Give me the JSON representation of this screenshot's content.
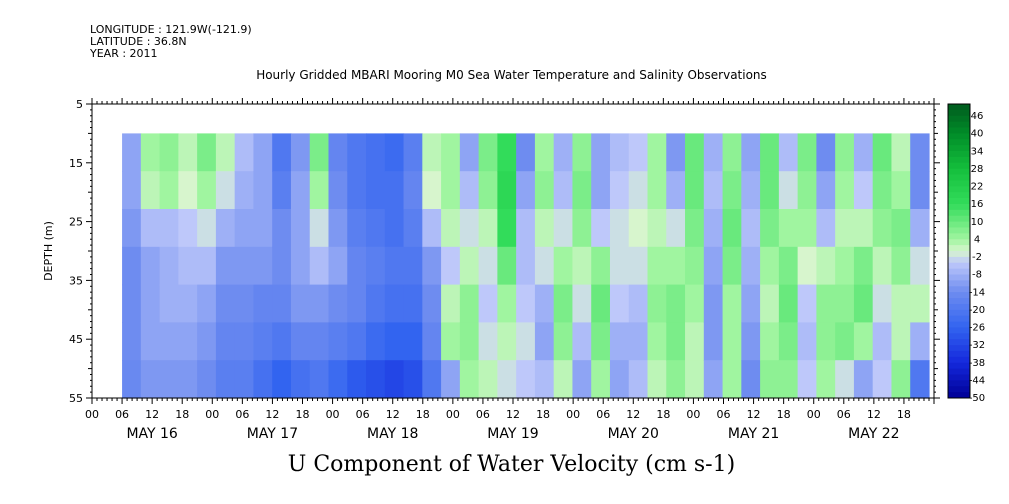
{
  "header": {
    "longitude": "LONGITUDE : 121.9W(-121.9)",
    "latitude": "LATITUDE : 36.8N",
    "year": "YEAR : 2011"
  },
  "chart_data": {
    "type": "heatmap",
    "title": "Hourly Gridded MBARI Mooring M0 Sea Water Temperature and Salinity Observations",
    "bottom_title": "U Component of Water Velocity (cm s-1)",
    "ylabel": "DEPTH (m)",
    "yticks": [
      5,
      15,
      25,
      35,
      45,
      55
    ],
    "ylim": [
      5,
      55
    ],
    "y_inverted": true,
    "data_depth_range": [
      10,
      55
    ],
    "x_hour_ticks": [
      "00",
      "06",
      "12",
      "18",
      "00",
      "06",
      "12",
      "18",
      "00",
      "06",
      "12",
      "18",
      "00",
      "06",
      "12",
      "18",
      "00",
      "06",
      "12",
      "18",
      "00",
      "06",
      "12",
      "18",
      "00",
      "06",
      "12",
      "18"
    ],
    "x_day_labels": [
      "MAY 16",
      "MAY 17",
      "MAY 18",
      "MAY 19",
      "MAY 20",
      "MAY 21",
      "MAY 22"
    ],
    "x_range_hours": [
      0,
      168
    ],
    "data_time_range_hours": [
      6,
      167
    ],
    "colorbar_labels": [
      "46",
      "40",
      "34",
      "28",
      "22",
      "16",
      "10",
      "4",
      "-2",
      "-8",
      "-14",
      "-20",
      "-26",
      "-32",
      "-38",
      "-44",
      "-50"
    ],
    "colorbar_range": [
      -50,
      50
    ],
    "column_profiles": [
      [
        -10,
        -10,
        -12,
        -14,
        -14,
        -14,
        -15
      ],
      [
        4,
        2,
        -6,
        -10,
        -10,
        -10,
        -12
      ],
      [
        6,
        4,
        -6,
        -8,
        -8,
        -10,
        -12
      ],
      [
        2,
        0,
        -4,
        -6,
        -8,
        -10,
        -12
      ],
      [
        8,
        4,
        -2,
        -6,
        -10,
        -12,
        -14
      ],
      [
        2,
        -2,
        -8,
        -12,
        -14,
        -16,
        -18
      ],
      [
        -6,
        -8,
        -10,
        -12,
        -14,
        -16,
        -18
      ],
      [
        -10,
        -10,
        -10,
        -12,
        -16,
        -18,
        -22
      ],
      [
        -20,
        -18,
        -14,
        -14,
        -16,
        -20,
        -26
      ],
      [
        -12,
        -10,
        -10,
        -10,
        -12,
        -16,
        -22
      ],
      [
        8,
        4,
        -2,
        -6,
        -12,
        -16,
        -20
      ],
      [
        -16,
        -14,
        -12,
        -10,
        -14,
        -18,
        -24
      ],
      [
        -20,
        -20,
        -18,
        -16,
        -16,
        -20,
        -28
      ],
      [
        -22,
        -22,
        -20,
        -18,
        -20,
        -24,
        -30
      ],
      [
        -24,
        -22,
        -22,
        -20,
        -22,
        -26,
        -32
      ],
      [
        -18,
        -16,
        -18,
        -20,
        -22,
        -26,
        -30
      ],
      [
        2,
        0,
        -6,
        -12,
        -14,
        -16,
        -20
      ],
      [
        4,
        4,
        2,
        -4,
        2,
        4,
        -10
      ],
      [
        -10,
        -6,
        -2,
        2,
        6,
        6,
        4
      ],
      [
        8,
        6,
        2,
        -2,
        -4,
        -2,
        2
      ],
      [
        16,
        18,
        16,
        10,
        4,
        2,
        -2
      ],
      [
        -14,
        -10,
        -6,
        -6,
        -4,
        -2,
        -4
      ],
      [
        4,
        6,
        2,
        -2,
        -8,
        -10,
        -6
      ],
      [
        -8,
        -6,
        -2,
        4,
        8,
        6,
        2
      ],
      [
        6,
        8,
        6,
        2,
        -2,
        -6,
        -10
      ],
      [
        -10,
        -10,
        -4,
        6,
        10,
        8,
        4
      ],
      [
        -6,
        -4,
        -2,
        -2,
        -4,
        -8,
        -10
      ],
      [
        -4,
        -2,
        0,
        -2,
        -6,
        -8,
        -6
      ],
      [
        4,
        4,
        2,
        4,
        6,
        4,
        2
      ],
      [
        -12,
        -8,
        -2,
        4,
        8,
        8,
        6
      ],
      [
        10,
        10,
        8,
        6,
        4,
        2,
        2
      ],
      [
        -8,
        -6,
        -8,
        -10,
        -12,
        -12,
        -10
      ],
      [
        6,
        8,
        10,
        8,
        4,
        4,
        4
      ],
      [
        -10,
        -8,
        -6,
        -8,
        -10,
        -12,
        -14
      ],
      [
        10,
        10,
        8,
        4,
        2,
        4,
        6
      ],
      [
        -6,
        -2,
        4,
        8,
        10,
        8,
        6
      ],
      [
        8,
        6,
        4,
        0,
        -4,
        -6,
        -4
      ],
      [
        -14,
        -10,
        -6,
        2,
        6,
        6,
        4
      ],
      [
        6,
        4,
        2,
        4,
        6,
        8,
        -2
      ],
      [
        -8,
        -4,
        2,
        8,
        10,
        4,
        -10
      ],
      [
        10,
        8,
        6,
        2,
        -2,
        -6,
        -4
      ],
      [
        2,
        4,
        8,
        6,
        2,
        2,
        6
      ],
      [
        -14,
        -14,
        -8,
        -2,
        2,
        -8,
        -20
      ]
    ]
  }
}
